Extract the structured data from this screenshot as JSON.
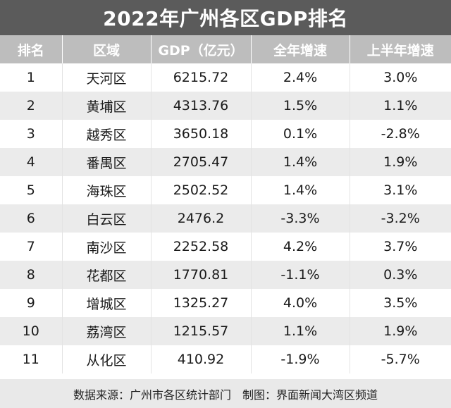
{
  "chart_data": {
    "type": "table",
    "title": "2022年广州各区GDP排名",
    "columns": [
      "排名",
      "区域",
      "GDP（亿元）",
      "全年增速",
      "上半年增速"
    ],
    "rows": [
      [
        "1",
        "天河区",
        "6215.72",
        "2.4%",
        "3.0%"
      ],
      [
        "2",
        "黄埔区",
        "4313.76",
        "1.5%",
        "1.1%"
      ],
      [
        "3",
        "越秀区",
        "3650.18",
        "0.1%",
        "-2.8%"
      ],
      [
        "4",
        "番禺区",
        "2705.47",
        "1.4%",
        "1.9%"
      ],
      [
        "5",
        "海珠区",
        "2502.52",
        "1.4%",
        "3.1%"
      ],
      [
        "6",
        "白云区",
        "2476.2",
        "-3.3%",
        "-3.2%"
      ],
      [
        "7",
        "南沙区",
        "2252.58",
        "4.2%",
        "3.7%"
      ],
      [
        "8",
        "花都区",
        "1770.81",
        "-1.1%",
        "0.3%"
      ],
      [
        "9",
        "增城区",
        "1325.27",
        "4.0%",
        "3.5%"
      ],
      [
        "10",
        "荔湾区",
        "1215.57",
        "1.1%",
        "1.9%"
      ],
      [
        "11",
        "从化区",
        "410.92",
        "-1.9%",
        "-5.7%"
      ]
    ],
    "footer": "数据来源：广州市各区统计部门　制图：界面新闻大湾区频道"
  },
  "colors": {
    "title_bg": "#5b5b5b",
    "header_bg": "#bdbdbd",
    "stripe_bg": "#ebebeb",
    "footer_bg": "#e9e9e9"
  }
}
